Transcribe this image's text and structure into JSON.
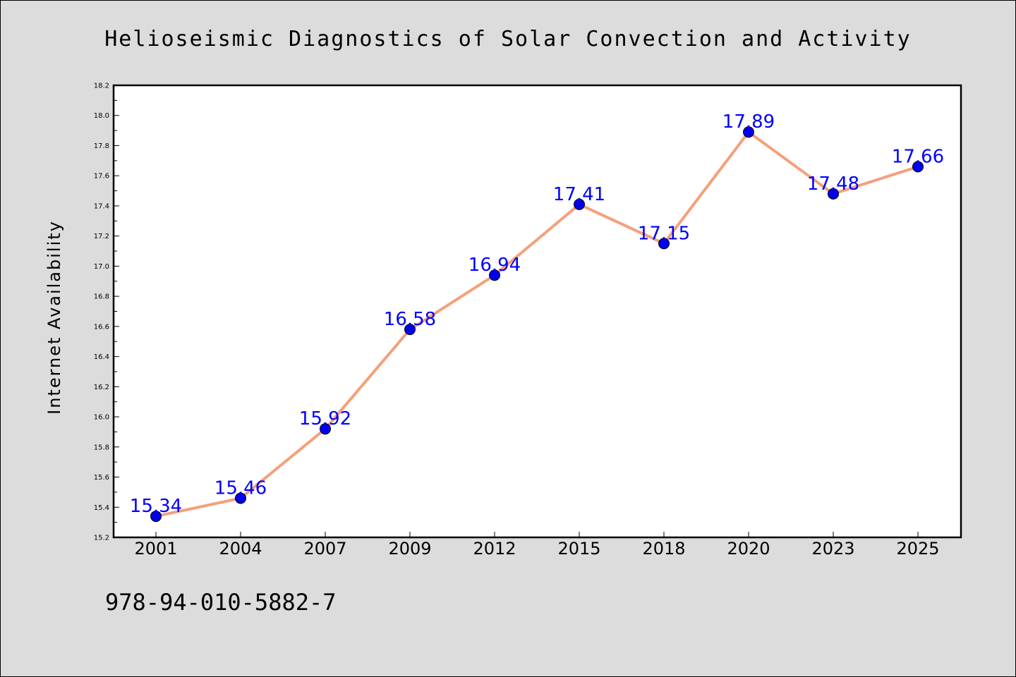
{
  "chart_data": {
    "type": "line",
    "title": "Helioseismic Diagnostics of Solar Convection and Activity",
    "xlabel": "",
    "ylabel": "Internet Availability",
    "categories": [
      "2001",
      "2004",
      "2007",
      "2009",
      "2012",
      "2015",
      "2018",
      "2020",
      "2023",
      "2025"
    ],
    "series": [
      {
        "values": [
          15.34,
          15.46,
          15.92,
          16.58,
          16.94,
          17.41,
          17.15,
          17.89,
          17.48,
          17.66
        ],
        "line_color": "#f4a07a",
        "marker_color": "#0000ee",
        "label_color": "#0000ff"
      }
    ],
    "data_labels": [
      "15.34",
      "15.46",
      "15.92",
      "16.58",
      "16.94",
      "17.41",
      "17.15",
      "17.89",
      "17.48",
      "17.66"
    ],
    "ylim": [
      15.2,
      18.2
    ],
    "yticks": [
      "15.2",
      "15.4",
      "15.6",
      "15.8",
      "16.0",
      "16.2",
      "16.4",
      "16.6",
      "16.8",
      "17.0",
      "17.2",
      "17.4",
      "17.6",
      "17.8",
      "18.0",
      "18.2"
    ],
    "grid": false,
    "legend": "none"
  },
  "footer_text": "978-94-010-5882-7",
  "colors": {
    "background": "#dcdcdc",
    "plot_area": "#ffffff",
    "axis": "#000000"
  }
}
